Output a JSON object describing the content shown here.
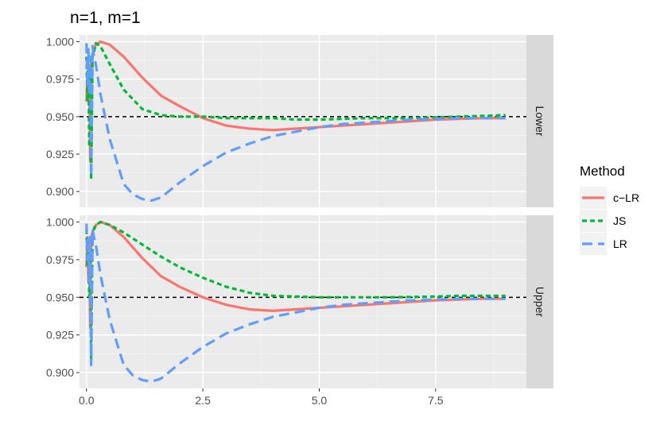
{
  "chart_data": {
    "type": "line",
    "title": "n=1, m=1",
    "xlabel": "",
    "ylabel": "",
    "xlim": [
      -0.15,
      9.45
    ],
    "ylim": [
      0.8895,
      1.0045
    ],
    "x_ticks": [
      0,
      2.5,
      5,
      7.5
    ],
    "x_tick_labels": [
      "0.0",
      "2.5",
      "5.0",
      "7.5"
    ],
    "y_ticks": [
      0.9,
      0.925,
      0.95,
      0.975,
      1.0
    ],
    "y_tick_labels": [
      "0.900",
      "0.925",
      "0.950",
      "0.975",
      "1.000"
    ],
    "reference_line": 0.95,
    "grid": true,
    "legend": {
      "title": "Method",
      "position": "right",
      "entries": [
        "c−LR",
        "JS",
        "LR"
      ]
    },
    "series_styles": [
      {
        "name": "c−LR",
        "color": "#F8766D",
        "dash": "solid"
      },
      {
        "name": "JS",
        "color": "#00BA38",
        "dash": "dotted"
      },
      {
        "name": "LR",
        "color": "#619CFF",
        "dash": "dashed"
      }
    ],
    "panels": [
      {
        "strip": "Lower",
        "series": [
          {
            "name": "c−LR",
            "x": [
              0,
              0.02,
              0.04,
              0.06,
              0.08,
              0.1,
              0.13,
              0.16,
              0.2,
              0.3,
              0.5,
              0.8,
              1.2,
              1.6,
              2.0,
              2.5,
              3.0,
              3.5,
              4.0,
              4.5,
              5.0,
              5.5,
              6.0,
              6.5,
              7.0,
              7.5,
              8.0,
              8.5,
              9.0
            ],
            "y": [
              0.96,
              0.98,
              0.965,
              0.975,
              0.92,
              0.985,
              0.99,
              0.995,
              0.998,
              1.0,
              0.998,
              0.99,
              0.976,
              0.964,
              0.957,
              0.949,
              0.944,
              0.942,
              0.941,
              0.942,
              0.943,
              0.944,
              0.945,
              0.946,
              0.947,
              0.948,
              0.9485,
              0.949,
              0.949
            ]
          },
          {
            "name": "JS",
            "x": [
              0,
              0.02,
              0.04,
              0.06,
              0.08,
              0.1,
              0.13,
              0.16,
              0.2,
              0.3,
              0.5,
              0.8,
              1.2,
              1.6,
              2.0,
              2.5,
              3.0,
              3.5,
              4.0,
              4.5,
              5.0,
              5.5,
              6.0,
              6.5,
              7.0,
              7.5,
              8.0,
              8.5,
              9.0
            ],
            "y": [
              0.99,
              0.96,
              0.985,
              0.93,
              0.975,
              0.908,
              0.99,
              0.993,
              0.999,
              0.997,
              0.985,
              0.968,
              0.955,
              0.951,
              0.95,
              0.95,
              0.949,
              0.949,
              0.949,
              0.948,
              0.948,
              0.9485,
              0.949,
              0.949,
              0.949,
              0.9495,
              0.95,
              0.9505,
              0.951
            ]
          },
          {
            "name": "LR",
            "x": [
              0,
              0.02,
              0.04,
              0.06,
              0.08,
              0.1,
              0.13,
              0.16,
              0.2,
              0.3,
              0.5,
              0.8,
              1.0,
              1.2,
              1.4,
              1.6,
              2.0,
              2.5,
              3.0,
              3.5,
              4.0,
              4.5,
              5.0,
              5.5,
              6.0,
              6.5,
              7.0,
              7.5,
              8.0,
              8.5,
              9.0
            ],
            "y": [
              0.999,
              0.97,
              0.995,
              0.965,
              0.99,
              0.91,
              0.997,
              0.99,
              0.985,
              0.965,
              0.935,
              0.905,
              0.898,
              0.895,
              0.894,
              0.896,
              0.906,
              0.917,
              0.926,
              0.932,
              0.937,
              0.94,
              0.943,
              0.945,
              0.946,
              0.947,
              0.948,
              0.9485,
              0.949,
              0.949,
              0.949
            ]
          }
        ]
      },
      {
        "strip": "Upper",
        "series": [
          {
            "name": "c−LR",
            "x": [
              0,
              0.02,
              0.04,
              0.06,
              0.08,
              0.1,
              0.13,
              0.16,
              0.2,
              0.3,
              0.5,
              0.8,
              1.2,
              1.6,
              2.0,
              2.5,
              3.0,
              3.5,
              4.0,
              4.5,
              5.0,
              5.5,
              6.0,
              6.5,
              7.0,
              7.5,
              8.0,
              8.5,
              9.0
            ],
            "y": [
              0.97,
              0.99,
              0.96,
              0.98,
              0.93,
              0.99,
              0.993,
              0.996,
              0.998,
              1.0,
              0.998,
              0.99,
              0.976,
              0.964,
              0.957,
              0.95,
              0.945,
              0.942,
              0.941,
              0.942,
              0.943,
              0.944,
              0.945,
              0.946,
              0.947,
              0.948,
              0.9485,
              0.949,
              0.949
            ]
          },
          {
            "name": "JS",
            "x": [
              0,
              0.02,
              0.04,
              0.06,
              0.08,
              0.1,
              0.13,
              0.16,
              0.2,
              0.3,
              0.5,
              0.8,
              1.2,
              1.6,
              2.0,
              2.5,
              3.0,
              3.5,
              4.0,
              4.5,
              5.0,
              5.5,
              6.0,
              6.5,
              7.0,
              7.5,
              8.0,
              8.5,
              9.0
            ],
            "y": [
              0.995,
              0.97,
              0.985,
              0.95,
              0.98,
              0.908,
              0.99,
              0.995,
              0.998,
              1.0,
              0.998,
              0.993,
              0.985,
              0.977,
              0.97,
              0.963,
              0.957,
              0.953,
              0.951,
              0.9505,
              0.95,
              0.95,
              0.95,
              0.95,
              0.9502,
              0.9505,
              0.951,
              0.951,
              0.951
            ]
          },
          {
            "name": "LR",
            "x": [
              0,
              0.02,
              0.04,
              0.06,
              0.08,
              0.1,
              0.13,
              0.16,
              0.2,
              0.3,
              0.5,
              0.8,
              1.0,
              1.2,
              1.4,
              1.6,
              2.0,
              2.5,
              3.0,
              3.5,
              4.0,
              4.5,
              5.0,
              5.5,
              6.0,
              6.5,
              7.0,
              7.5,
              8.0,
              8.5,
              9.0
            ],
            "y": [
              0.999,
              0.975,
              0.99,
              0.96,
              0.99,
              0.905,
              0.995,
              0.99,
              0.985,
              0.965,
              0.935,
              0.905,
              0.898,
              0.895,
              0.894,
              0.896,
              0.906,
              0.917,
              0.926,
              0.932,
              0.937,
              0.94,
              0.943,
              0.945,
              0.946,
              0.947,
              0.948,
              0.9485,
              0.949,
              0.949,
              0.949
            ]
          }
        ]
      }
    ]
  }
}
